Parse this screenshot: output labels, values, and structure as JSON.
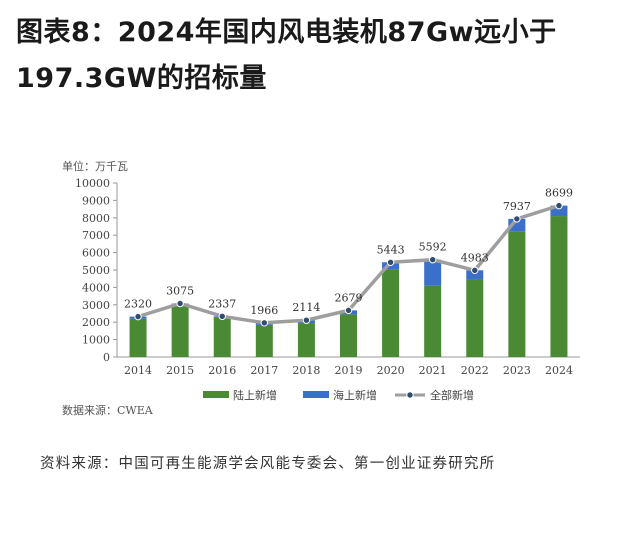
{
  "title": {
    "line1": "图表8：2024年国内风电装机87Gw远小于",
    "line2": "197.3GW的招标量"
  },
  "chart_data": {
    "type": "bar",
    "stacked": true,
    "unit_label": "单位：万千瓦",
    "categories": [
      "2014",
      "2015",
      "2016",
      "2017",
      "2018",
      "2019",
      "2020",
      "2021",
      "2022",
      "2023",
      "2024"
    ],
    "series": [
      {
        "name": "陆上新增",
        "type": "bar",
        "color": "#4a8a34",
        "values": [
          2200,
          2900,
          2250,
          1850,
          1950,
          2450,
          5050,
          4100,
          4450,
          7200,
          8100
        ]
      },
      {
        "name": "海上新增",
        "type": "bar",
        "color": "#3c6fc9",
        "values": [
          120,
          175,
          87,
          116,
          164,
          229,
          393,
          1492,
          533,
          737,
          599
        ]
      },
      {
        "name": "全部新增",
        "type": "line",
        "color": "#9e9e9e",
        "values": [
          2320,
          3075,
          2337,
          1966,
          2114,
          2679,
          5443,
          5592,
          4983,
          7937,
          8699
        ]
      }
    ],
    "data_labels": [
      "2320",
      "3075",
      "2337",
      "1966",
      "2114",
      "2679",
      "5443",
      "5592",
      "4983",
      "7937",
      "8699"
    ],
    "y_ticks": [
      "0",
      "1000",
      "2000",
      "3000",
      "4000",
      "5000",
      "6000",
      "7000",
      "8000",
      "9000",
      "10000"
    ],
    "ylim": [
      0,
      10000
    ],
    "grid": false,
    "legend_position": "bottom"
  },
  "data_source": "数据来源：CWEA",
  "source_note": "资料来源：中国可再生能源学会风能专委会、第一创业证券研究所"
}
